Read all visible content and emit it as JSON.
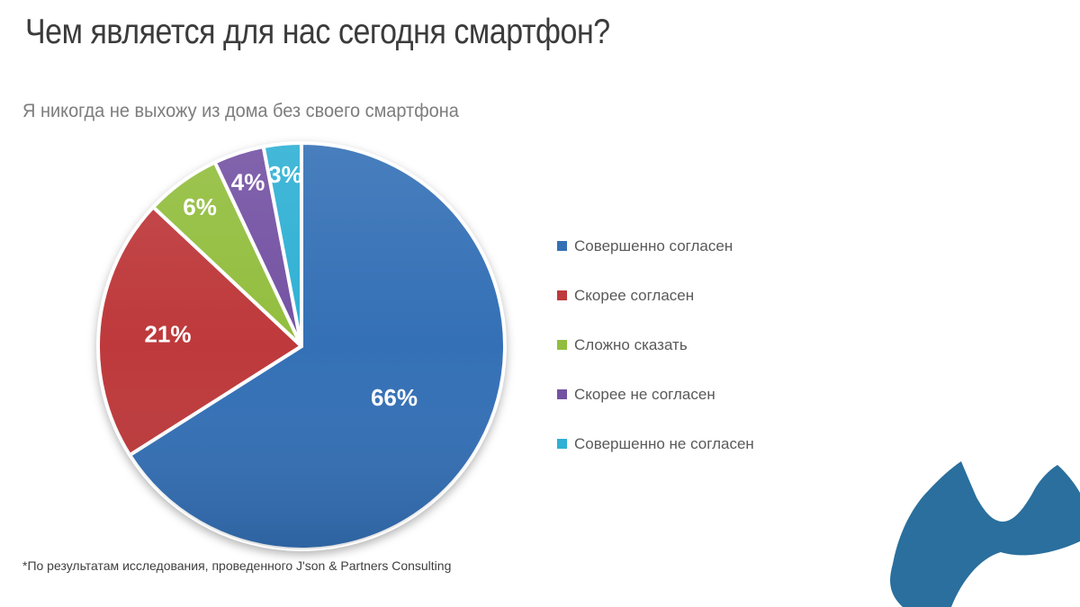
{
  "slide": {
    "title": "Чем является для нас сегодня смартфон?",
    "subtitle": "Я никогда не выхожу из дома без своего смартфона",
    "footnote": "*По результатам исследования, проведенного J'son & Partners Consulting"
  },
  "chart_data": {
    "type": "pie",
    "title": "Я никогда не выхожу из дома без своего смартфона",
    "unit": "%",
    "start_angle_deg": 0,
    "direction": "clockwise",
    "legend_position": "right",
    "slice_border_color": "#ffffff",
    "slices": [
      {
        "label": "Совершенно согласен",
        "value": 66,
        "display": "66%",
        "color": "#3470B6"
      },
      {
        "label": "Скорее согласен",
        "value": 21,
        "display": "21%",
        "color": "#BE393B"
      },
      {
        "label": "Сложно сказать",
        "value": 6,
        "display": "6%",
        "color": "#92BE3E"
      },
      {
        "label": "Скорее не согласен",
        "value": 4,
        "display": "4%",
        "color": "#7452A3"
      },
      {
        "label": "Совершенно не согласен",
        "value": 3,
        "display": "3%",
        "color": "#2FB0D4"
      }
    ]
  },
  "logo": {
    "name": "cat-head-logo",
    "color": "#2A6F9D"
  },
  "colors": {
    "title_text": "#3b3b3b",
    "subtitle_text": "#7d7d7d",
    "legend_text": "#595959",
    "data_label_text": "#ffffff"
  }
}
